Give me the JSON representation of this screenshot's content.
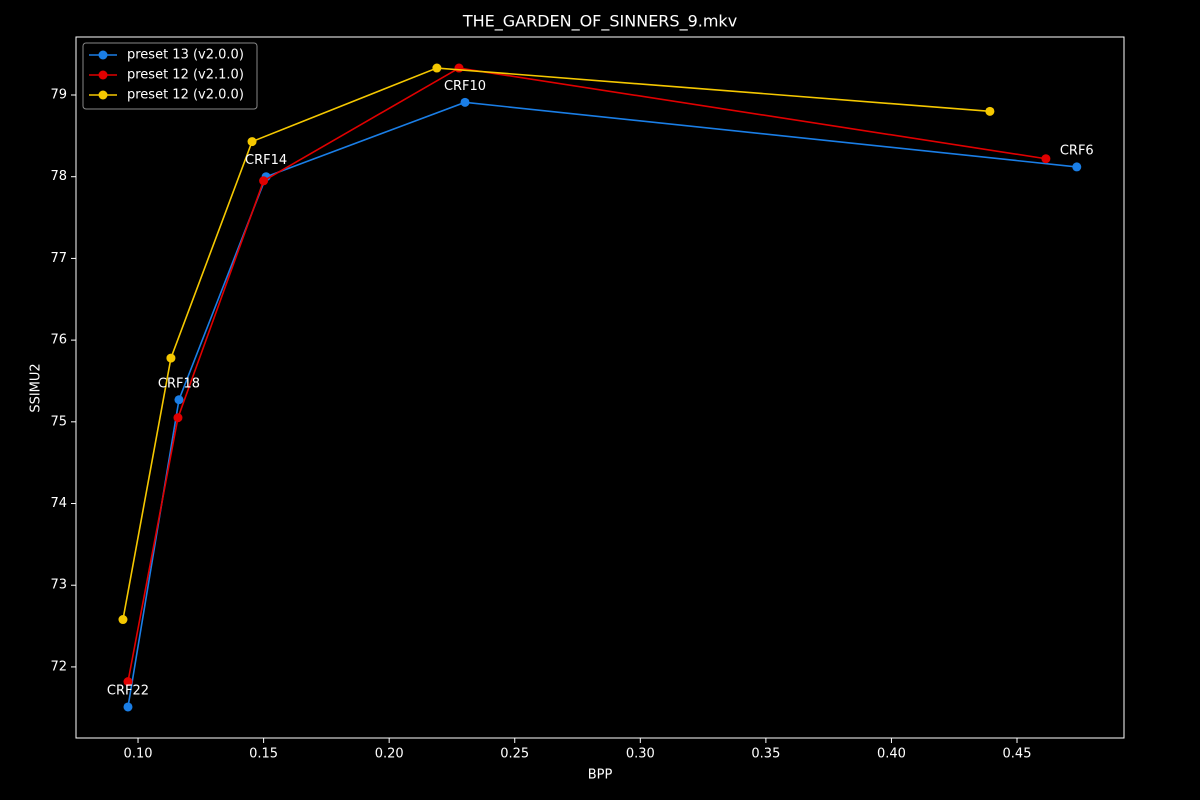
{
  "chart_data": {
    "type": "line",
    "title": "THE_GARDEN_OF_SINNERS_9.mkv",
    "x_label": "BPP",
    "y_label": "SSIMU2",
    "xlim": [
      0.0753,
      0.4926
    ],
    "ylim": [
      71.13,
      79.71
    ],
    "xticks": [
      {
        "value": 0.1,
        "label": "0.10"
      },
      {
        "value": 0.15,
        "label": "0.15"
      },
      {
        "value": 0.2,
        "label": "0.20"
      },
      {
        "value": 0.25,
        "label": "0.25"
      },
      {
        "value": 0.3,
        "label": "0.30"
      },
      {
        "value": 0.35,
        "label": "0.35"
      },
      {
        "value": 0.4,
        "label": "0.40"
      },
      {
        "value": 0.45,
        "label": "0.45"
      }
    ],
    "yticks": [
      72,
      73,
      74,
      75,
      76,
      77,
      78,
      79
    ],
    "legend": "upper-left",
    "series": [
      {
        "name": "preset 13 (v2.0.0)",
        "color": "#1a7ee6",
        "x": [
          0.096,
          0.1163,
          0.151,
          0.2302,
          0.4738
        ],
        "values": [
          71.51,
          75.27,
          78.0,
          78.91,
          78.12
        ],
        "point_labels": [
          "CRF22",
          "CRF18",
          "CRF14",
          "CRF10",
          "CRF6"
        ]
      },
      {
        "name": "preset 12 (v2.1.0)",
        "color": "#e00000",
        "x": [
          0.096,
          0.1159,
          0.15,
          0.2278,
          0.4615
        ],
        "values": [
          71.82,
          75.05,
          77.95,
          79.33,
          78.22
        ]
      },
      {
        "name": "preset 12 (v2.0.0)",
        "color": "#f5c800",
        "x": [
          0.094,
          0.1131,
          0.1454,
          0.219,
          0.4392
        ],
        "values": [
          72.58,
          75.78,
          78.43,
          79.33,
          78.8
        ]
      }
    ]
  }
}
